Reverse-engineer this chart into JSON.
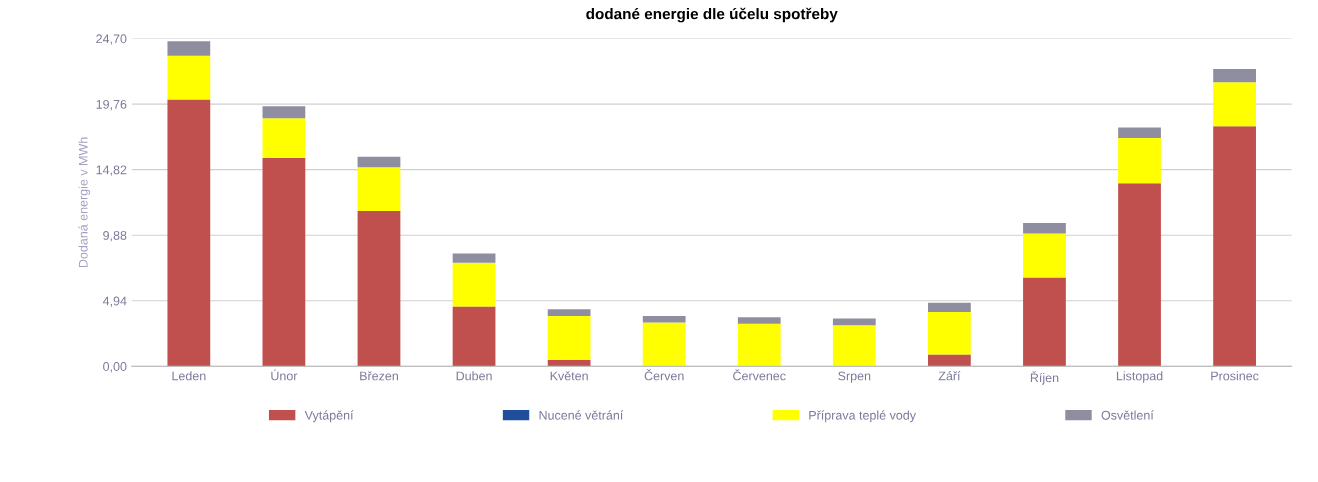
{
  "chart_data": {
    "type": "bar",
    "title": "dodané energie dle účelu spotřeby",
    "ylabel": "Dodaná energie v MWh",
    "categories": [
      "Leden",
      "Únor",
      "Březen",
      "Duben",
      "Květen",
      "Červen",
      "Červenec",
      "Srpen",
      "Září",
      "Říjen",
      "Listopad",
      "Prosinec"
    ],
    "stacked": true,
    "series": [
      {
        "name": "Vytápění",
        "color": "#c0504d",
        "values": [
          20.1,
          15.7,
          11.7,
          4.5,
          0.5,
          0,
          0,
          0,
          0.9,
          6.7,
          13.8,
          18.1
        ]
      },
      {
        "name": "Nucené větrání",
        "color": "#1f4e9c",
        "values": [
          0,
          0,
          0,
          0,
          0,
          0,
          0,
          0,
          0,
          0,
          0,
          0
        ]
      },
      {
        "name": "Příprava teplé vody",
        "color": "#ffff00",
        "values": [
          3.3,
          3.0,
          3.3,
          3.3,
          3.3,
          3.3,
          3.2,
          3.1,
          3.2,
          3.3,
          3.4,
          3.3
        ]
      },
      {
        "name": "Osvětlení",
        "color": "#8e8ea0",
        "values": [
          1.1,
          0.9,
          0.8,
          0.7,
          0.5,
          0.5,
          0.5,
          0.5,
          0.7,
          0.8,
          0.8,
          1.0
        ]
      }
    ],
    "ylim": [
      0,
      24.7
    ],
    "yticks": [
      {
        "value": 0,
        "label": "0,00"
      },
      {
        "value": 4.94,
        "label": "4,94"
      },
      {
        "value": 9.88,
        "label": "9,88"
      },
      {
        "value": 14.82,
        "label": "14,82"
      },
      {
        "value": 19.76,
        "label": "19,76"
      },
      {
        "value": 24.7,
        "label": "24,70"
      }
    ],
    "grid": "y",
    "legend": "bottom"
  }
}
